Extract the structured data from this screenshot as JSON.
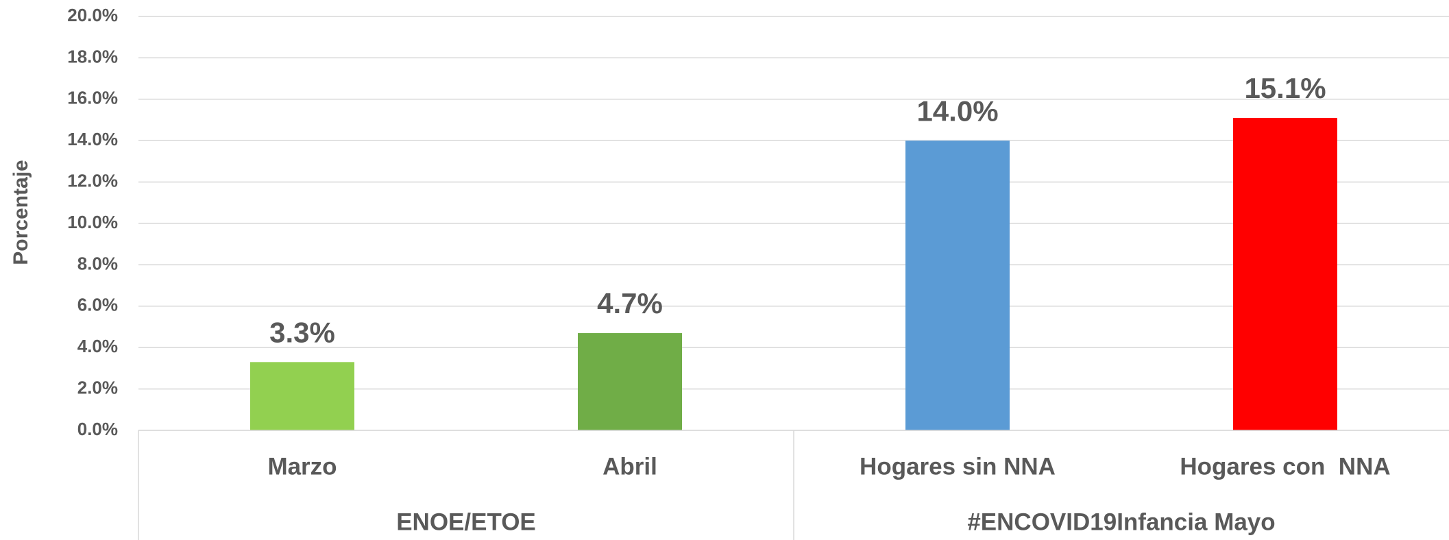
{
  "chart_data": {
    "type": "bar",
    "y_label": "Porcentaje",
    "categories": [
      "Marzo",
      "Abril",
      "Hogares sin NNA",
      "Hogares con  NNA"
    ],
    "values": [
      3.3,
      4.7,
      14.0,
      15.1
    ],
    "value_labels": [
      "3.3%",
      "4.7%",
      "14.0%",
      "15.1%"
    ],
    "colors": [
      "#92d050",
      "#70ad47",
      "#5b9bd5",
      "#ff0000"
    ],
    "groups": [
      {
        "label": "ENOE/ETOE",
        "count": 2
      },
      {
        "label": "#ENCOVID19Infancia Mayo",
        "count": 2
      }
    ],
    "ylim": [
      0,
      20
    ],
    "yticks": [
      {
        "value": 0,
        "label": "0.0%"
      },
      {
        "value": 2,
        "label": "2.0%"
      },
      {
        "value": 4,
        "label": "4.0%"
      },
      {
        "value": 6,
        "label": "6.0%"
      },
      {
        "value": 8,
        "label": "8.0%"
      },
      {
        "value": 10,
        "label": "10.0%"
      },
      {
        "value": 12,
        "label": "12.0%"
      },
      {
        "value": 14,
        "label": "14.0%"
      },
      {
        "value": 16,
        "label": "16.0%"
      },
      {
        "value": 18,
        "label": "18.0%"
      },
      {
        "value": 20,
        "label": "20.0%"
      }
    ],
    "grid": true
  }
}
